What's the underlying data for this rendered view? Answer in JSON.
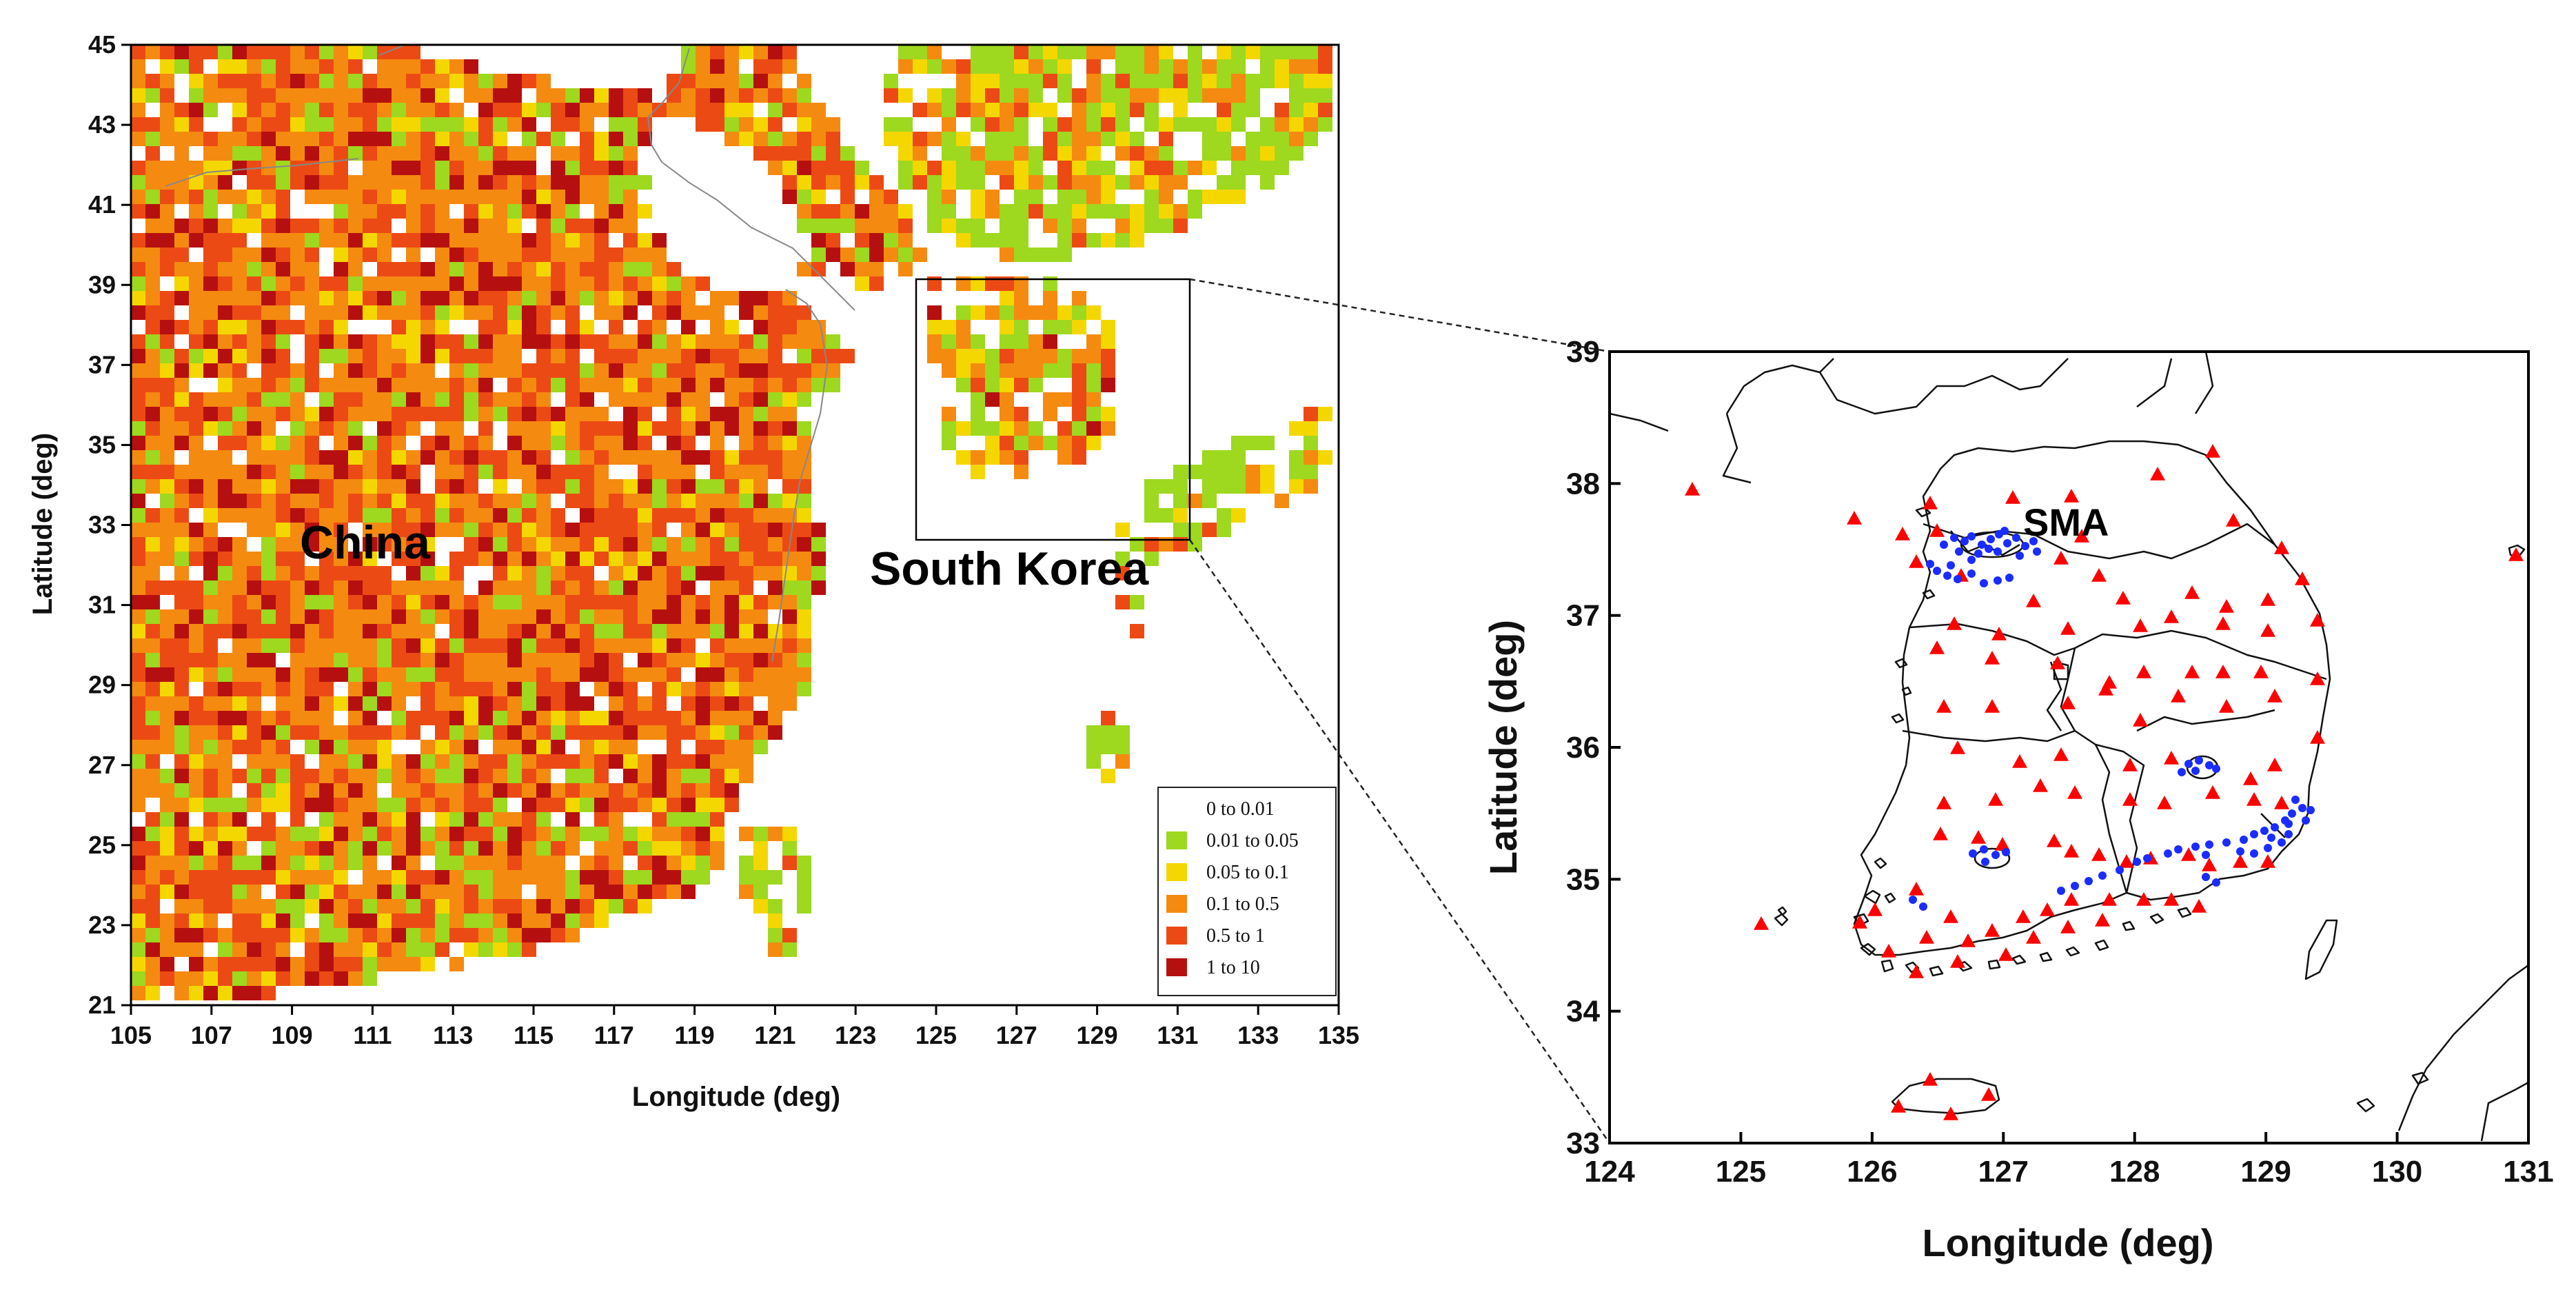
{
  "left_map": {
    "xticks": [
      "105",
      "107",
      "109",
      "111",
      "113",
      "115",
      "117",
      "119",
      "121",
      "123",
      "125",
      "127",
      "129",
      "131",
      "133",
      "135"
    ],
    "yticks": [
      "21",
      "23",
      "25",
      "27",
      "29",
      "31",
      "33",
      "35",
      "37",
      "39",
      "41",
      "43",
      "45"
    ],
    "xlabel": "Longitude (deg)",
    "ylabel": "Latitude (deg)",
    "label_china": "China",
    "label_korea": "South Korea",
    "xlim": [
      105,
      135
    ],
    "ylim": [
      21,
      45
    ],
    "legend": [
      {
        "label": "0  to  0.01",
        "color": "#ffffff"
      },
      {
        "label": "0.01  to  0.05",
        "color": "#9ed81f"
      },
      {
        "label": "0.05  to  0.1",
        "color": "#f5d700"
      },
      {
        "label": "0.1  to  0.5",
        "color": "#f58a10"
      },
      {
        "label": "0.5  to  1",
        "color": "#ec4a14"
      },
      {
        "label": "1  to  10",
        "color": "#b5100f"
      }
    ]
  },
  "right_map": {
    "xticks": [
      "124",
      "125",
      "126",
      "127",
      "128",
      "129",
      "130",
      "131"
    ],
    "yticks": [
      "33",
      "34",
      "35",
      "36",
      "37",
      "38",
      "39"
    ],
    "xlabel": "Longitude (deg)",
    "ylabel": "Latitude (deg)",
    "label_sma": "SMA",
    "xlim": [
      124,
      131
    ],
    "ylim": [
      33,
      39
    ],
    "triangle_color": "#ff0000",
    "dot_color": "#1a2cff"
  }
}
